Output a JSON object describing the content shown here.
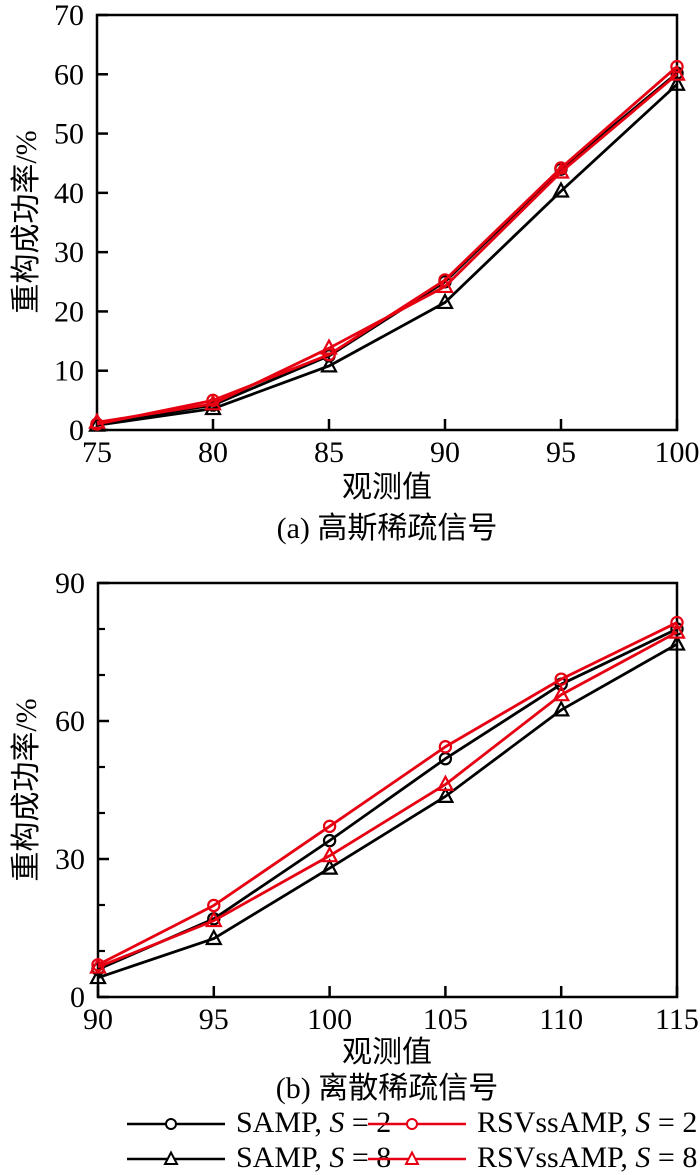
{
  "figure": {
    "background": "#ffffff",
    "axis_color": "#000000",
    "accent_red": "#e60012"
  },
  "chart_data": [
    {
      "type": "line",
      "panel": "a",
      "title": "(a) 高斯稀疏信号",
      "xlabel": "观测值",
      "ylabel": "重构成功率/%",
      "x": [
        75,
        80,
        85,
        90,
        95,
        100
      ],
      "xlim": [
        75,
        100
      ],
      "ylim": [
        0,
        70
      ],
      "x_ticks": [
        75,
        80,
        85,
        90,
        95,
        100
      ],
      "y_ticks_labeled": [
        0,
        10,
        20,
        30,
        40,
        50,
        60,
        70
      ],
      "y_ticks_minor": [],
      "grid": false,
      "legend_position": "bottom",
      "series": [
        {
          "name": "SAMP, S = 2",
          "color": "#000000",
          "marker": "circle",
          "values": [
            1.0,
            4.2,
            12.5,
            25.0,
            44.0,
            60.2
          ]
        },
        {
          "name": "SAMP, S = 8",
          "color": "#000000",
          "marker": "triangle",
          "values": [
            0.8,
            3.6,
            10.8,
            21.5,
            40.3,
            58.3
          ]
        },
        {
          "name": "RSVssAMP, S = 2",
          "color": "#e60012",
          "marker": "circle",
          "values": [
            1.0,
            5.0,
            12.7,
            25.3,
            44.2,
            61.3
          ]
        },
        {
          "name": "RSVssAMP, S = 8",
          "color": "#e60012",
          "marker": "triangle",
          "values": [
            1.3,
            4.4,
            13.8,
            24.2,
            43.5,
            60.0
          ]
        }
      ]
    },
    {
      "type": "line",
      "panel": "b",
      "title": "(b) 离散稀疏信号",
      "xlabel": "观测值",
      "ylabel": "重构成功率/%",
      "x": [
        90,
        95,
        100,
        105,
        110,
        115
      ],
      "xlim": [
        90,
        115
      ],
      "ylim": [
        0,
        90
      ],
      "x_ticks": [
        90,
        95,
        100,
        105,
        110,
        115
      ],
      "y_ticks_labeled": [
        0,
        30,
        60,
        90
      ],
      "y_ticks_minor": [
        10,
        20,
        40,
        50,
        70,
        80
      ],
      "grid": false,
      "legend_position": "bottom",
      "series": [
        {
          "name": "SAMP, S = 2",
          "color": "#000000",
          "marker": "circle",
          "values": [
            6.0,
            17.0,
            34.0,
            51.8,
            68.0,
            80.0
          ]
        },
        {
          "name": "SAMP, S = 8",
          "color": "#000000",
          "marker": "triangle",
          "values": [
            4.2,
            12.7,
            28.0,
            43.6,
            62.4,
            76.7
          ]
        },
        {
          "name": "RSVssAMP, S = 2",
          "color": "#e60012",
          "marker": "circle",
          "values": [
            7.0,
            19.9,
            37.1,
            54.4,
            69.1,
            81.4
          ]
        },
        {
          "name": "RSVssAMP, S = 8",
          "color": "#e60012",
          "marker": "triangle",
          "values": [
            6.5,
            16.6,
            30.7,
            46.2,
            65.7,
            79.3
          ]
        }
      ]
    }
  ],
  "legend": {
    "items": [
      {
        "method": "SAMP",
        "s_value": "2",
        "label": "SAMP, S = 2",
        "color": "#000000",
        "marker": "circle"
      },
      {
        "method": "SAMP",
        "s_value": "8",
        "label": "SAMP, S = 8",
        "color": "#000000",
        "marker": "triangle"
      },
      {
        "method": "RSVssAMP",
        "s_value": "2",
        "label": "RSVssAMP, S = 2",
        "color": "#e60012",
        "marker": "circle"
      },
      {
        "method": "RSVssAMP",
        "s_value": "8",
        "label": "RSVssAMP, S = 8",
        "color": "#e60012",
        "marker": "triangle"
      }
    ]
  }
}
